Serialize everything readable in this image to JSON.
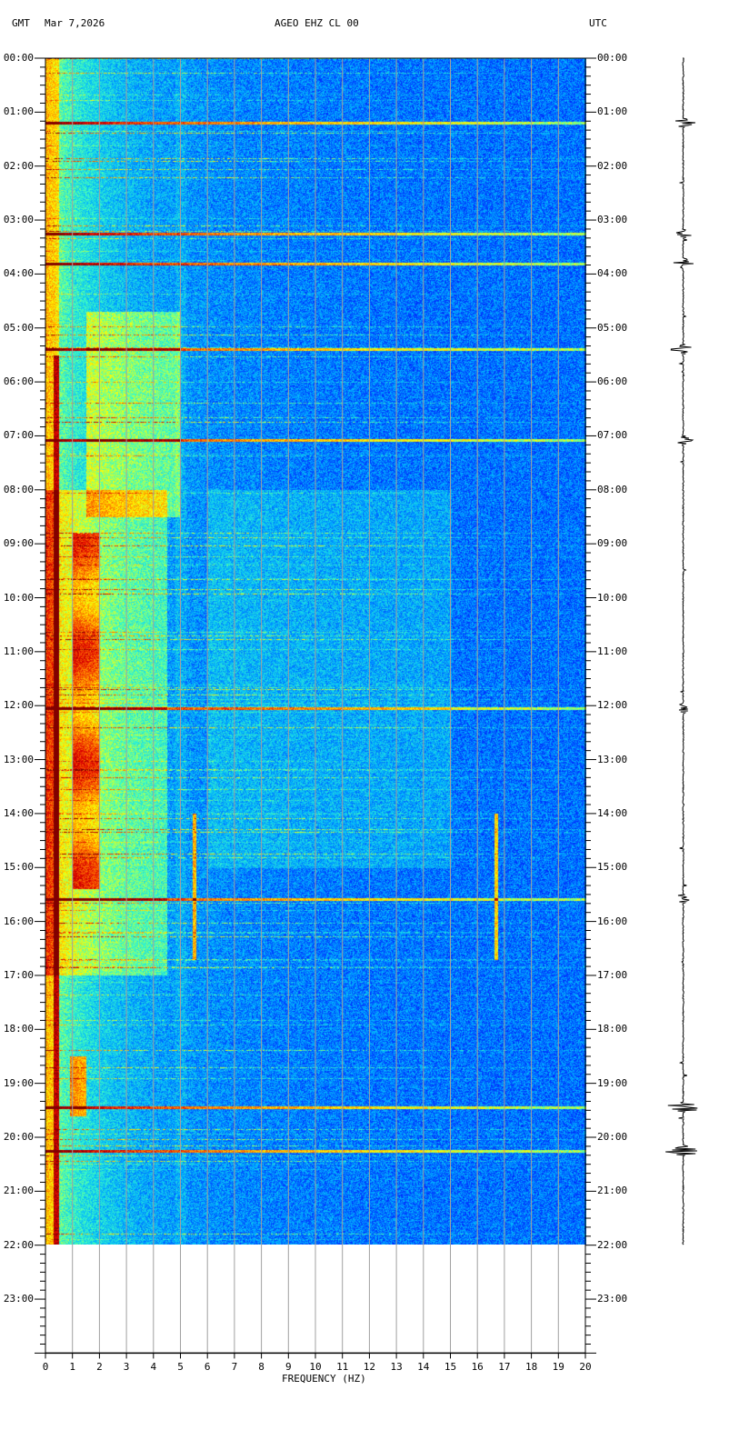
{
  "header": {
    "timezone_left": "GMT",
    "date": "Mar 7,2026",
    "station": "AGEO EHZ CL 00",
    "timezone_right": "UTC"
  },
  "chart_data": {
    "type": "heatmap",
    "title": "AGEO EHZ CL 00",
    "xlabel": "FREQUENCY (HZ)",
    "ylabel": "",
    "xlim": [
      0,
      20
    ],
    "x_ticks": [
      "0",
      "1",
      "2",
      "3",
      "4",
      "5",
      "6",
      "7",
      "8",
      "9",
      "10",
      "11",
      "12",
      "13",
      "14",
      "15",
      "16",
      "17",
      "18",
      "19",
      "20"
    ],
    "y_ticks": [
      "00:00",
      "01:00",
      "02:00",
      "03:00",
      "04:00",
      "05:00",
      "06:00",
      "07:00",
      "08:00",
      "09:00",
      "10:00",
      "11:00",
      "12:00",
      "13:00",
      "14:00",
      "15:00",
      "16:00",
      "17:00",
      "18:00",
      "19:00",
      "20:00",
      "21:00",
      "22:00",
      "23:00"
    ],
    "ylim_hours": [
      0,
      24
    ],
    "data_end_hour": 22,
    "grid": true,
    "colormap": [
      "#0000b4",
      "#0030ff",
      "#00b4ff",
      "#40ffc0",
      "#ffff00",
      "#ff8000",
      "#e00000",
      "#800000"
    ],
    "grid_color": "#a0a0a0",
    "events_hours": [
      1.2,
      3.25,
      3.8,
      5.4,
      7.08,
      12.05,
      15.58,
      19.45,
      20.25
    ],
    "tremor_band": {
      "freq_hz": [
        1.0,
        2.0
      ],
      "hours": [
        8.8,
        15.4
      ]
    }
  }
}
